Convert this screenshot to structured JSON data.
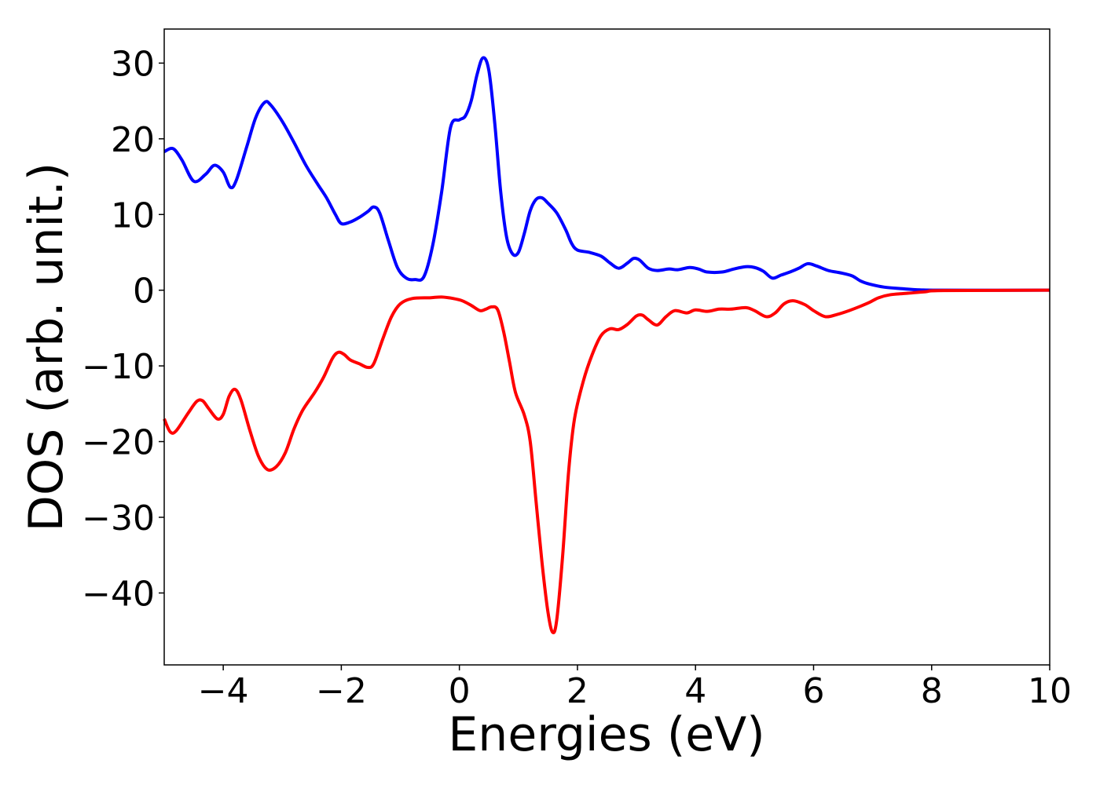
{
  "chart_data": {
    "type": "line",
    "title": "",
    "xlabel": "Energies (eV)",
    "ylabel": "DOS (arb. unit.)",
    "xlim": [
      -5,
      10
    ],
    "ylim": [
      -49.5,
      34.5
    ],
    "xticks": [
      -4,
      -2,
      0,
      2,
      4,
      6,
      8,
      10
    ],
    "xtick_labels": [
      "−4",
      "−2",
      "0",
      "2",
      "4",
      "6",
      "8",
      "10"
    ],
    "yticks": [
      30,
      20,
      10,
      0,
      -10,
      -20,
      -30,
      -40
    ],
    "ytick_labels": [
      "30",
      "20",
      "10",
      "0",
      "−10",
      "−20",
      "−30",
      "−40"
    ],
    "grid": false,
    "legend": "none",
    "series": [
      {
        "color": "#0000ff",
        "points": [
          [
            -5.0,
            18.3
          ],
          [
            -4.85,
            18.7
          ],
          [
            -4.7,
            17.2
          ],
          [
            -4.5,
            14.4
          ],
          [
            -4.3,
            15.3
          ],
          [
            -4.15,
            16.5
          ],
          [
            -4.0,
            15.6
          ],
          [
            -3.88,
            13.6
          ],
          [
            -3.78,
            14.5
          ],
          [
            -3.6,
            19.0
          ],
          [
            -3.45,
            22.8
          ],
          [
            -3.3,
            24.8
          ],
          [
            -3.2,
            24.5
          ],
          [
            -3.0,
            22.3
          ],
          [
            -2.8,
            19.5
          ],
          [
            -2.6,
            16.5
          ],
          [
            -2.4,
            14.0
          ],
          [
            -2.25,
            12.2
          ],
          [
            -2.1,
            10.0
          ],
          [
            -2.0,
            8.8
          ],
          [
            -1.85,
            9.0
          ],
          [
            -1.7,
            9.6
          ],
          [
            -1.55,
            10.4
          ],
          [
            -1.45,
            11.0
          ],
          [
            -1.35,
            10.2
          ],
          [
            -1.2,
            6.5
          ],
          [
            -1.05,
            3.0
          ],
          [
            -0.9,
            1.6
          ],
          [
            -0.75,
            1.4
          ],
          [
            -0.6,
            1.8
          ],
          [
            -0.45,
            6.0
          ],
          [
            -0.3,
            13.0
          ],
          [
            -0.15,
            21.5
          ],
          [
            0.0,
            22.5
          ],
          [
            0.1,
            23.0
          ],
          [
            0.2,
            25.0
          ],
          [
            0.3,
            28.5
          ],
          [
            0.4,
            30.7
          ],
          [
            0.5,
            29.0
          ],
          [
            0.6,
            22.0
          ],
          [
            0.7,
            13.0
          ],
          [
            0.8,
            7.0
          ],
          [
            0.9,
            4.8
          ],
          [
            1.0,
            5.0
          ],
          [
            1.1,
            7.5
          ],
          [
            1.2,
            10.5
          ],
          [
            1.3,
            12.0
          ],
          [
            1.4,
            12.2
          ],
          [
            1.5,
            11.5
          ],
          [
            1.65,
            10.2
          ],
          [
            1.8,
            8.0
          ],
          [
            1.9,
            6.2
          ],
          [
            2.0,
            5.3
          ],
          [
            2.2,
            5.0
          ],
          [
            2.4,
            4.5
          ],
          [
            2.55,
            3.6
          ],
          [
            2.7,
            2.9
          ],
          [
            2.85,
            3.6
          ],
          [
            2.95,
            4.2
          ],
          [
            3.05,
            4.0
          ],
          [
            3.2,
            2.9
          ],
          [
            3.35,
            2.6
          ],
          [
            3.55,
            2.8
          ],
          [
            3.7,
            2.7
          ],
          [
            3.9,
            3.0
          ],
          [
            4.05,
            2.8
          ],
          [
            4.2,
            2.4
          ],
          [
            4.45,
            2.4
          ],
          [
            4.65,
            2.8
          ],
          [
            4.85,
            3.1
          ],
          [
            5.0,
            3.0
          ],
          [
            5.15,
            2.5
          ],
          [
            5.3,
            1.6
          ],
          [
            5.45,
            2.0
          ],
          [
            5.6,
            2.4
          ],
          [
            5.75,
            2.9
          ],
          [
            5.9,
            3.5
          ],
          [
            6.05,
            3.2
          ],
          [
            6.25,
            2.6
          ],
          [
            6.45,
            2.3
          ],
          [
            6.65,
            1.9
          ],
          [
            6.8,
            1.2
          ],
          [
            6.95,
            0.8
          ],
          [
            7.2,
            0.4
          ],
          [
            7.5,
            0.2
          ],
          [
            7.8,
            0.05
          ],
          [
            8.2,
            0.0
          ],
          [
            10.0,
            0.0
          ]
        ]
      },
      {
        "color": "#ff0000",
        "points": [
          [
            -5.0,
            -17.0
          ],
          [
            -4.9,
            -18.7
          ],
          [
            -4.8,
            -18.6
          ],
          [
            -4.6,
            -16.3
          ],
          [
            -4.45,
            -14.7
          ],
          [
            -4.35,
            -14.6
          ],
          [
            -4.25,
            -15.6
          ],
          [
            -4.1,
            -17.0
          ],
          [
            -4.0,
            -16.4
          ],
          [
            -3.9,
            -14.0
          ],
          [
            -3.8,
            -13.1
          ],
          [
            -3.7,
            -14.5
          ],
          [
            -3.55,
            -18.5
          ],
          [
            -3.4,
            -22.0
          ],
          [
            -3.25,
            -23.7
          ],
          [
            -3.1,
            -23.3
          ],
          [
            -2.95,
            -21.5
          ],
          [
            -2.8,
            -18.3
          ],
          [
            -2.65,
            -15.8
          ],
          [
            -2.45,
            -13.5
          ],
          [
            -2.3,
            -11.5
          ],
          [
            -2.15,
            -9.0
          ],
          [
            -2.05,
            -8.2
          ],
          [
            -1.95,
            -8.5
          ],
          [
            -1.85,
            -9.2
          ],
          [
            -1.7,
            -9.7
          ],
          [
            -1.55,
            -10.2
          ],
          [
            -1.45,
            -9.7
          ],
          [
            -1.3,
            -6.5
          ],
          [
            -1.15,
            -3.5
          ],
          [
            -1.0,
            -1.8
          ],
          [
            -0.8,
            -1.1
          ],
          [
            -0.5,
            -1.0
          ],
          [
            -0.3,
            -0.9
          ],
          [
            -0.1,
            -1.1
          ],
          [
            0.05,
            -1.4
          ],
          [
            0.2,
            -2.0
          ],
          [
            0.35,
            -2.7
          ],
          [
            0.45,
            -2.5
          ],
          [
            0.55,
            -2.2
          ],
          [
            0.65,
            -2.6
          ],
          [
            0.75,
            -5.5
          ],
          [
            0.85,
            -9.5
          ],
          [
            0.95,
            -13.5
          ],
          [
            1.1,
            -16.5
          ],
          [
            1.2,
            -20.0
          ],
          [
            1.3,
            -28.0
          ],
          [
            1.4,
            -36.0
          ],
          [
            1.5,
            -42.5
          ],
          [
            1.58,
            -45.2
          ],
          [
            1.65,
            -43.5
          ],
          [
            1.75,
            -35.0
          ],
          [
            1.85,
            -24.0
          ],
          [
            1.95,
            -17.0
          ],
          [
            2.1,
            -12.0
          ],
          [
            2.25,
            -8.5
          ],
          [
            2.4,
            -6.0
          ],
          [
            2.55,
            -5.1
          ],
          [
            2.7,
            -5.2
          ],
          [
            2.85,
            -4.5
          ],
          [
            3.0,
            -3.4
          ],
          [
            3.1,
            -3.3
          ],
          [
            3.2,
            -3.9
          ],
          [
            3.35,
            -4.6
          ],
          [
            3.5,
            -3.5
          ],
          [
            3.65,
            -2.7
          ],
          [
            3.85,
            -3.0
          ],
          [
            4.0,
            -2.6
          ],
          [
            4.2,
            -2.8
          ],
          [
            4.4,
            -2.5
          ],
          [
            4.6,
            -2.5
          ],
          [
            4.85,
            -2.3
          ],
          [
            5.0,
            -2.7
          ],
          [
            5.2,
            -3.5
          ],
          [
            5.35,
            -3.0
          ],
          [
            5.5,
            -1.8
          ],
          [
            5.65,
            -1.4
          ],
          [
            5.85,
            -1.9
          ],
          [
            6.0,
            -2.7
          ],
          [
            6.2,
            -3.5
          ],
          [
            6.4,
            -3.2
          ],
          [
            6.6,
            -2.7
          ],
          [
            6.8,
            -2.1
          ],
          [
            6.95,
            -1.6
          ],
          [
            7.1,
            -1.0
          ],
          [
            7.3,
            -0.6
          ],
          [
            7.6,
            -0.4
          ],
          [
            7.9,
            -0.2
          ],
          [
            8.2,
            -0.05
          ],
          [
            10.0,
            0.0
          ]
        ]
      }
    ]
  }
}
